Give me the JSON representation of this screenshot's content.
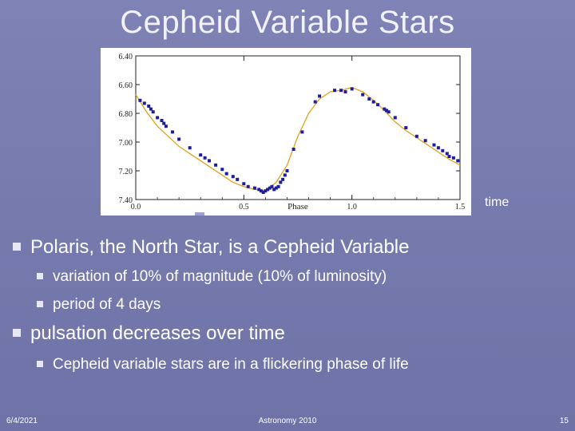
{
  "slide": {
    "title": "Cepheid Variable Stars",
    "side_label": "time",
    "bullets": [
      {
        "text": "Polaris, the North Star, is a Cepheid Variable",
        "level": 1
      },
      {
        "text": "variation of 10% of magnitude (10% of luminosity)",
        "level": 2
      },
      {
        "text": "period  of 4 days",
        "level": 2
      },
      {
        "text": "pulsation decreases over time",
        "level": 1
      },
      {
        "text": "Cepheid variable stars are in a flickering phase of life",
        "level": 2
      }
    ],
    "footer": {
      "date": "6/4/2021",
      "center": "Astronomy 2010",
      "page": "15"
    }
  },
  "colors": {
    "background": "#7478ab",
    "curve": "#e0a020",
    "points": "#1e1e9c"
  },
  "chart_data": {
    "type": "scatter",
    "xlabel": "Phase",
    "ylabel": "",
    "xlim": [
      0,
      1.5
    ],
    "ylim": [
      7.4,
      6.4
    ],
    "y_inverted": true,
    "x_ticks": [
      "0.0",
      "0.5",
      "1.0",
      "1.5"
    ],
    "y_ticks": [
      "6.40",
      "6.60",
      "6.80",
      "7.00",
      "7.20",
      "7.40"
    ],
    "series": [
      {
        "type": "line",
        "x": [
          0.0,
          0.05,
          0.1,
          0.15,
          0.2,
          0.25,
          0.3,
          0.35,
          0.4,
          0.45,
          0.5,
          0.55,
          0.6,
          0.65,
          0.7,
          0.75,
          0.8,
          0.85,
          0.9,
          0.95,
          1.0,
          1.05,
          1.1,
          1.15,
          1.2,
          1.25,
          1.3,
          1.35,
          1.4,
          1.45,
          1.5
        ],
        "y": [
          6.67,
          6.79,
          6.89,
          6.96,
          7.03,
          7.08,
          7.13,
          7.18,
          7.23,
          7.28,
          7.31,
          7.33,
          7.34,
          7.28,
          7.16,
          6.96,
          6.8,
          6.7,
          6.65,
          6.64,
          6.62,
          6.65,
          6.71,
          6.78,
          6.86,
          6.92,
          6.97,
          7.02,
          7.07,
          7.12,
          7.16
        ]
      },
      {
        "type": "scatter",
        "x": [
          0.02,
          0.04,
          0.06,
          0.07,
          0.08,
          0.1,
          0.12,
          0.13,
          0.14,
          0.17,
          0.2,
          0.25,
          0.3,
          0.32,
          0.34,
          0.37,
          0.4,
          0.42,
          0.45,
          0.47,
          0.5,
          0.52,
          0.55,
          0.57,
          0.58,
          0.59,
          0.6,
          0.61,
          0.62,
          0.63,
          0.64,
          0.65,
          0.66,
          0.67,
          0.68,
          0.69,
          0.7,
          0.73,
          0.77,
          0.83,
          0.85,
          0.92,
          0.95,
          0.97,
          1.0,
          1.05,
          1.08,
          1.1,
          1.12,
          1.15,
          1.16,
          1.17,
          1.2,
          1.25,
          1.3,
          1.34,
          1.38,
          1.4,
          1.42,
          1.44,
          1.45,
          1.47,
          1.49
        ],
        "y": [
          6.71,
          6.73,
          6.75,
          6.77,
          6.79,
          6.83,
          6.85,
          6.87,
          6.89,
          6.93,
          6.98,
          7.04,
          7.09,
          7.11,
          7.13,
          7.16,
          7.19,
          7.22,
          7.24,
          7.26,
          7.29,
          7.31,
          7.32,
          7.33,
          7.34,
          7.35,
          7.34,
          7.33,
          7.32,
          7.31,
          7.33,
          7.32,
          7.31,
          7.28,
          7.26,
          7.23,
          7.2,
          7.05,
          6.93,
          6.72,
          6.68,
          6.64,
          6.64,
          6.65,
          6.63,
          6.67,
          6.7,
          6.72,
          6.74,
          6.77,
          6.78,
          6.79,
          6.83,
          6.9,
          6.96,
          6.99,
          7.02,
          7.04,
          7.06,
          7.08,
          7.1,
          7.11,
          7.13
        ]
      }
    ]
  }
}
